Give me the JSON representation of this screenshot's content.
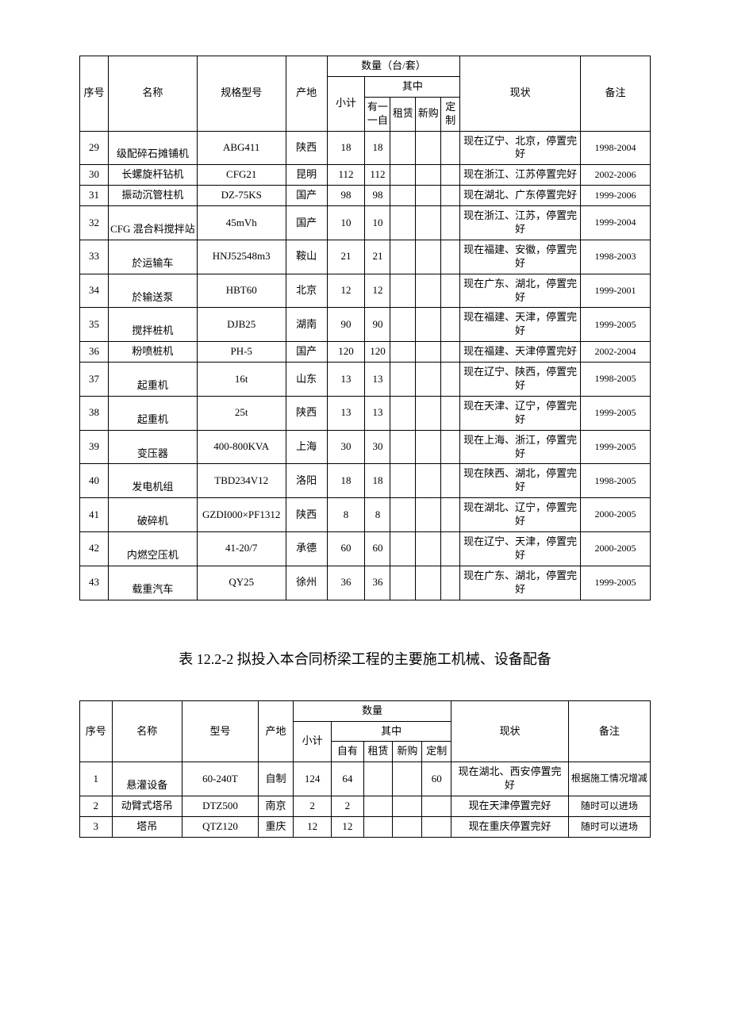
{
  "table1": {
    "headers": {
      "idx": "序号",
      "name": "名称",
      "model": "规格型号",
      "origin": "产地",
      "qty_group": "数量（台/套）",
      "subtotal": "小计",
      "among": "其中",
      "own": "有一一自",
      "rent": "租赁",
      "buy": "新购",
      "custom": "定制",
      "status": "现状",
      "note": "备注"
    },
    "rows": [
      {
        "idx": "29",
        "name": "级配碎石摊铺机",
        "model": "ABG411",
        "origin": "陕西",
        "sub": "18",
        "own": "18",
        "rent": "",
        "buy": "",
        "cust": "",
        "status": "现在辽宁、北京，停置完好",
        "note": "1998-2004"
      },
      {
        "idx": "30",
        "name": "长螺旋杆钻机",
        "model": "CFG21",
        "origin": "昆明",
        "sub": "112",
        "own": "112",
        "rent": "",
        "buy": "",
        "cust": "",
        "status": "现在浙江、江苏停置完好",
        "note": "2002-2006"
      },
      {
        "idx": "31",
        "name": "振动沉管柱机",
        "model": "DZ-75KS",
        "origin": "国产",
        "sub": "98",
        "own": "98",
        "rent": "",
        "buy": "",
        "cust": "",
        "status": "现在湖北、广东停置完好",
        "note": "1999-2006"
      },
      {
        "idx": "32",
        "name": "CFG 混合料搅拌站",
        "model": "45mVh",
        "origin": "国产",
        "sub": "10",
        "own": "10",
        "rent": "",
        "buy": "",
        "cust": "",
        "status": "现在浙江、江苏，停置完好",
        "note": "1999-2004"
      },
      {
        "idx": "33",
        "name": "於运输车",
        "model": "HNJ52548m3",
        "origin": "鞍山",
        "sub": "21",
        "own": "21",
        "rent": "",
        "buy": "",
        "cust": "",
        "status": "现在福建、安徽，停置完好",
        "note": "1998-2003"
      },
      {
        "idx": "34",
        "name": "於输送泵",
        "model": "HBT60",
        "origin": "北京",
        "sub": "12",
        "own": "12",
        "rent": "",
        "buy": "",
        "cust": "",
        "status": "现在广东、湖北，停置完好",
        "note": "1999-2001"
      },
      {
        "idx": "35",
        "name": "搅拌桩机",
        "model": "DJB25",
        "origin": "湖南",
        "sub": "90",
        "own": "90",
        "rent": "",
        "buy": "",
        "cust": "",
        "status": "现在福建、天津，停置完好",
        "note": "1999-2005"
      },
      {
        "idx": "36",
        "name": "粉喷桩机",
        "model": "PH-5",
        "origin": "国产",
        "sub": "120",
        "own": "120",
        "rent": "",
        "buy": "",
        "cust": "",
        "status": "现在福建、天津停置完好",
        "note": "2002-2004"
      },
      {
        "idx": "37",
        "name": "起重机",
        "model": "16t",
        "origin": "山东",
        "sub": "13",
        "own": "13",
        "rent": "",
        "buy": "",
        "cust": "",
        "status": "现在辽宁、陕西，停置完好",
        "note": "1998-2005"
      },
      {
        "idx": "38",
        "name": "起重机",
        "model": "25t",
        "origin": "陕西",
        "sub": "13",
        "own": "13",
        "rent": "",
        "buy": "",
        "cust": "",
        "status": "现在天津、辽宁，停置完好",
        "note": "1999-2005"
      },
      {
        "idx": "39",
        "name": "变压器",
        "model": "400-800KVA",
        "origin": "上海",
        "sub": "30",
        "own": "30",
        "rent": "",
        "buy": "",
        "cust": "",
        "status": "现在上海、浙江，停置完好",
        "note": "1999-2005"
      },
      {
        "idx": "40",
        "name": "发电机组",
        "model": "TBD234V12",
        "origin": "洛阳",
        "sub": "18",
        "own": "18",
        "rent": "",
        "buy": "",
        "cust": "",
        "status": "现在陕西、湖北，停置完好",
        "note": "1998-2005"
      },
      {
        "idx": "41",
        "name": "破碎机",
        "model": "GZDI000×PF1312",
        "origin": "陕西",
        "sub": "8",
        "own": "8",
        "rent": "",
        "buy": "",
        "cust": "",
        "status": "现在湖北、辽宁，停置完好",
        "note": "2000-2005"
      },
      {
        "idx": "42",
        "name": "内燃空压机",
        "model": "41-20/7",
        "origin": "承德",
        "sub": "60",
        "own": "60",
        "rent": "",
        "buy": "",
        "cust": "",
        "status": "现在辽宁、天津，停置完好",
        "note": "2000-2005"
      },
      {
        "idx": "43",
        "name": "载重汽车",
        "model": "QY25",
        "origin": "徐州",
        "sub": "36",
        "own": "36",
        "rent": "",
        "buy": "",
        "cust": "",
        "status": "现在广东、湖北，停置完好",
        "note": "1999-2005"
      }
    ]
  },
  "section_title": "表 12.2-2 拟投入本合同桥梁工程的主要施工机械、设备配备",
  "table2": {
    "headers": {
      "idx": "序号",
      "name": "名称",
      "model": "型号",
      "origin": "产地",
      "qty_group": "数量",
      "subtotal": "小计",
      "among": "其中",
      "own": "自有",
      "rent": "租赁",
      "buy": "新购",
      "custom": "定制",
      "status": "现状",
      "note": "备注"
    },
    "rows": [
      {
        "idx": "1",
        "name": "悬灌设备",
        "model": "60-240T",
        "origin": "自制",
        "sub": "124",
        "own": "64",
        "rent": "",
        "buy": "",
        "cust": "60",
        "status": "现在湖北、西安停置完好",
        "note": "根据施工情况增减"
      },
      {
        "idx": "2",
        "name": "动臂式塔吊",
        "model": "DTZ500",
        "origin": "南京",
        "sub": "2",
        "own": "2",
        "rent": "",
        "buy": "",
        "cust": "",
        "status": "现在天津停置完好",
        "note": "随时可以进场"
      },
      {
        "idx": "3",
        "name": "塔吊",
        "model": "QTZ120",
        "origin": "重庆",
        "sub": "12",
        "own": "12",
        "rent": "",
        "buy": "",
        "cust": "",
        "status": "现在重庆停置完好",
        "note": "随时可以进场"
      }
    ]
  }
}
